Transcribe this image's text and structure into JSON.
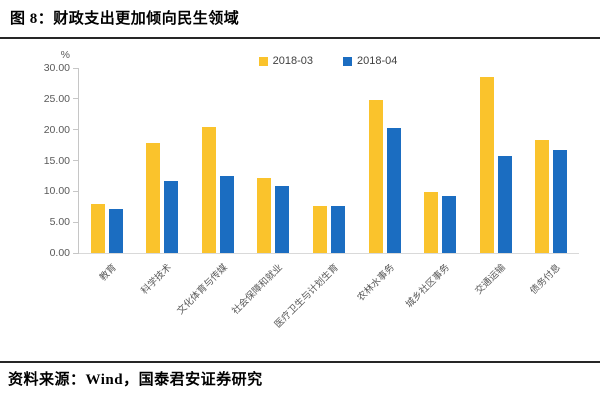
{
  "title": "图 8：财政支出更加倾向民生领域",
  "source_note": "资料来源：Wind，国泰君安证券研究",
  "colors": {
    "series_2018_03": "#FAC32C",
    "series_2018_04": "#1B6DC1",
    "axis_line": "#C6C6C6",
    "rule": "#262626",
    "tick_text": "#595959"
  },
  "chart_data": {
    "type": "bar",
    "title": "",
    "xlabel": "",
    "ylabel": "%",
    "ylim": [
      0,
      30
    ],
    "ytick_step": 5,
    "yticks_desc": [
      "30.00",
      "25.00",
      "20.00",
      "15.00",
      "10.00",
      "5.00",
      "0.00"
    ],
    "grid": false,
    "legend_position": "top-center",
    "categories": [
      "教育",
      "科学技术",
      "文化体育与传媒",
      "社会保障和就业",
      "医疗卫生与计划生育",
      "农林水事务",
      "城乡社区事务",
      "交通运输",
      "债务付息"
    ],
    "series": [
      {
        "name": "2018-03",
        "color": "#FAC32C",
        "values": [
          7.9,
          17.8,
          20.5,
          12.1,
          7.7,
          24.8,
          9.9,
          28.5,
          18.3
        ]
      },
      {
        "name": "2018-04",
        "color": "#1B6DC1",
        "values": [
          7.1,
          11.7,
          12.5,
          10.8,
          7.6,
          20.3,
          9.3,
          15.8,
          16.7
        ]
      }
    ]
  }
}
